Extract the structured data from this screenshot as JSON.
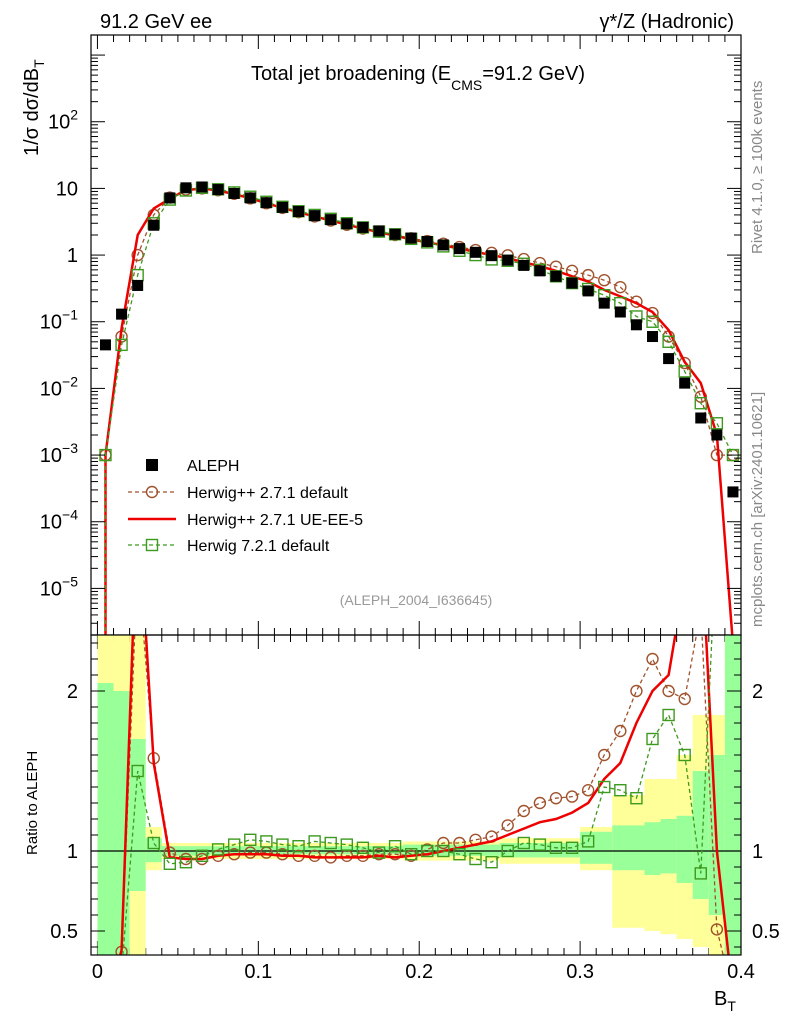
{
  "header": {
    "left": "91.2 GeV ee",
    "right": "γ*/Z (Hadronic)"
  },
  "side_labels": {
    "rivet": "Rivet 4.1.0, ≥ 100k events",
    "mcplots": "mcplots.cern.ch [arXiv:2401.10621]"
  },
  "colors": {
    "data": "#000000",
    "herwigpp_default": "#a0522d",
    "herwigpp_ueee5": "#ee0000",
    "herwig7": "#3c9a1e",
    "band_yellow": "#ffff99",
    "band_green": "#99ff99"
  },
  "chart_data": {
    "type": "line",
    "title": "Total jet broadening (E_CMS=91.2 GeV)",
    "title_parts": {
      "main": "Total jet broadening (E",
      "sub": "CMS",
      "tail": "=91.2 GeV)"
    },
    "analysis_tag": "(ALEPH_2004_I636645)",
    "ylabel": {
      "main": "1/σ  dσ/dB",
      "sub": "T"
    },
    "xlabel": {
      "main": "B",
      "sub": "T"
    },
    "ratio_ylabel": "Ratio to ALEPH",
    "xlim": [
      -0.004,
      0.4
    ],
    "ylim_log": [
      2e-06,
      2000
    ],
    "ratio_ylim": [
      0.35,
      2.35
    ],
    "x_ticks": [
      "0",
      "0.1",
      "0.2",
      "0.3",
      "0.4"
    ],
    "y_ticks": [
      {
        "base": "10",
        "exp": "−5",
        "v": 1e-05
      },
      {
        "base": "10",
        "exp": "−4",
        "v": 0.0001
      },
      {
        "base": "10",
        "exp": "−3",
        "v": 0.001
      },
      {
        "base": "10",
        "exp": "−2",
        "v": 0.01
      },
      {
        "base": "10",
        "exp": "−1",
        "v": 0.1
      },
      {
        "base": "1",
        "exp": "",
        "v": 1
      },
      {
        "base": "10",
        "exp": "",
        "v": 10
      },
      {
        "base": "10",
        "exp": "2",
        "v": 100
      }
    ],
    "ratio_ticks": [
      "0.5",
      "1",
      "2"
    ],
    "legend": [
      "ALEPH",
      "Herwig++ 2.7.1 default",
      "Herwig++ 2.7.1 UE-EE-5",
      "Herwig 7.2.1 default"
    ],
    "x": [
      0.005,
      0.015,
      0.025,
      0.035,
      0.045,
      0.055,
      0.065,
      0.075,
      0.085,
      0.095,
      0.105,
      0.115,
      0.125,
      0.135,
      0.145,
      0.155,
      0.165,
      0.175,
      0.185,
      0.195,
      0.205,
      0.215,
      0.225,
      0.235,
      0.245,
      0.255,
      0.265,
      0.275,
      0.285,
      0.295,
      0.305,
      0.315,
      0.325,
      0.335,
      0.345,
      0.355,
      0.365,
      0.375,
      0.385,
      0.395
    ],
    "series": [
      {
        "name": "ALEPH",
        "values": [
          0.045,
          0.13,
          0.35,
          2.8,
          7.2,
          10.2,
          10.5,
          9.6,
          8.4,
          7.2,
          6.1,
          5.2,
          4.5,
          3.9,
          3.4,
          2.95,
          2.6,
          2.3,
          2.05,
          1.8,
          1.6,
          1.42,
          1.25,
          1.1,
          0.98,
          0.84,
          0.7,
          0.58,
          0.48,
          0.38,
          0.29,
          0.19,
          0.14,
          0.09,
          0.06,
          0.028,
          0.012,
          0.0036,
          0.002,
          0.00028
        ]
      },
      {
        "name": "Herwig++ 2.7.1 default",
        "values": [
          0.001,
          0.06,
          1.0,
          4.0,
          7.3,
          9.6,
          10.0,
          9.4,
          8.3,
          7.1,
          6.0,
          5.1,
          4.4,
          3.8,
          3.3,
          2.85,
          2.5,
          2.25,
          2.0,
          1.78,
          1.62,
          1.48,
          1.32,
          1.19,
          1.08,
          0.99,
          0.87,
          0.76,
          0.67,
          0.58,
          0.5,
          0.42,
          0.33,
          0.2,
          0.135,
          0.06,
          0.024,
          0.0075,
          0.001,
          0.001
        ]
      },
      {
        "name": "Herwig++ 2.7.1 UE-EE-5",
        "values": [
          0.001,
          0.08,
          2.0,
          5.0,
          7.0,
          9.4,
          10.0,
          9.3,
          8.2,
          7.1,
          6.0,
          5.1,
          4.4,
          3.8,
          3.3,
          2.85,
          2.5,
          2.2,
          1.95,
          1.72,
          1.55,
          1.4,
          1.25,
          1.12,
          1.0,
          0.9,
          0.78,
          0.68,
          0.58,
          0.48,
          0.4,
          0.3,
          0.24,
          0.19,
          0.14,
          0.075,
          0.025,
          0.012,
          0.002,
          0.0
        ]
      },
      {
        "name": "Herwig 7.2.1 default",
        "values": [
          0.001,
          0.045,
          0.5,
          3.0,
          6.8,
          9.3,
          10.2,
          9.7,
          8.7,
          7.5,
          6.3,
          5.3,
          4.55,
          4.0,
          3.5,
          3.0,
          2.6,
          2.25,
          2.05,
          1.75,
          1.55,
          1.35,
          1.16,
          1.0,
          0.86,
          0.82,
          0.74,
          0.6,
          0.48,
          0.38,
          0.31,
          0.25,
          0.19,
          0.12,
          0.1,
          0.05,
          0.018,
          0.006,
          0.003,
          0.001
        ]
      }
    ],
    "ratios": [
      {
        "name": "Herwig++ 2.7.1 default",
        "values": [
          0.02,
          0.37,
          2.8,
          1.58,
          0.99,
          0.95,
          0.95,
          0.97,
          0.98,
          0.99,
          0.99,
          0.98,
          0.97,
          0.97,
          0.96,
          0.97,
          0.97,
          0.98,
          0.98,
          0.97,
          1.01,
          1.05,
          1.05,
          1.07,
          1.09,
          1.16,
          1.25,
          1.3,
          1.33,
          1.34,
          1.38,
          1.6,
          1.75,
          2.0,
          2.2,
          2.0,
          1.95,
          2.5,
          0.51,
          0.1
        ]
      },
      {
        "name": "Herwig++ 2.7.1 UE-EE-5",
        "values": [
          0.02,
          0.38,
          3.5,
          1.55,
          0.96,
          0.95,
          0.95,
          0.97,
          0.98,
          0.98,
          0.98,
          0.97,
          0.97,
          0.96,
          0.96,
          0.96,
          0.96,
          0.97,
          0.96,
          0.97,
          0.98,
          1.0,
          1.02,
          1.04,
          1.06,
          1.1,
          1.14,
          1.18,
          1.2,
          1.24,
          1.3,
          1.45,
          1.55,
          1.8,
          2.0,
          2.1,
          2.7,
          3.0,
          1.0,
          0.1
        ]
      },
      {
        "name": "Herwig 7.2.1 default",
        "values": [
          0.02,
          0.25,
          1.5,
          1.05,
          0.92,
          0.93,
          0.97,
          1.01,
          1.04,
          1.07,
          1.06,
          1.04,
          1.03,
          1.06,
          1.05,
          1.04,
          1.02,
          0.99,
          1.03,
          0.98,
          1.0,
          1.0,
          0.98,
          0.95,
          0.93,
          1.0,
          1.05,
          1.04,
          1.02,
          1.02,
          1.06,
          1.4,
          1.38,
          1.33,
          1.7,
          1.85,
          1.6,
          0.86,
          3.0,
          3.0
        ]
      }
    ],
    "bands": [
      {
        "x0": 0.0,
        "x1": 0.01,
        "y_lo": 0.35,
        "y_hi": 2.35,
        "g_lo": 0.35,
        "g_hi": 2.05
      },
      {
        "x0": 0.01,
        "x1": 0.02,
        "y_lo": 0.35,
        "y_hi": 2.35,
        "g_lo": 0.35,
        "g_hi": 2.0
      },
      {
        "x0": 0.02,
        "x1": 0.03,
        "y_lo": 0.35,
        "y_hi": 2.35,
        "g_lo": 0.75,
        "g_hi": 1.7
      },
      {
        "x0": 0.03,
        "x1": 0.04,
        "y_lo": 0.88,
        "y_hi": 1.15,
        "g_lo": 0.93,
        "g_hi": 1.08
      },
      {
        "x0": 0.04,
        "x1": 0.07,
        "y_lo": 0.95,
        "y_hi": 1.05,
        "g_lo": 0.97,
        "g_hi": 1.03
      },
      {
        "x0": 0.07,
        "x1": 0.19,
        "y_lo": 0.95,
        "y_hi": 1.05,
        "g_lo": 0.98,
        "g_hi": 1.03
      },
      {
        "x0": 0.19,
        "x1": 0.25,
        "y_lo": 0.94,
        "y_hi": 1.06,
        "g_lo": 0.97,
        "g_hi": 1.04
      },
      {
        "x0": 0.25,
        "x1": 0.3,
        "y_lo": 0.92,
        "y_hi": 1.08,
        "g_lo": 0.96,
        "g_hi": 1.05
      },
      {
        "x0": 0.3,
        "x1": 0.32,
        "y_lo": 0.88,
        "y_hi": 1.15,
        "g_lo": 0.92,
        "g_hi": 1.12
      },
      {
        "x0": 0.32,
        "x1": 0.34,
        "y_lo": 0.52,
        "y_hi": 1.35,
        "g_lo": 0.88,
        "g_hi": 1.16
      },
      {
        "x0": 0.34,
        "x1": 0.35,
        "y_lo": 0.5,
        "y_hi": 1.45,
        "g_lo": 0.85,
        "g_hi": 1.18
      },
      {
        "x0": 0.35,
        "x1": 0.36,
        "y_lo": 0.48,
        "y_hi": 1.45,
        "g_lo": 0.86,
        "g_hi": 1.2
      },
      {
        "x0": 0.36,
        "x1": 0.37,
        "y_lo": 0.45,
        "y_hi": 1.6,
        "g_lo": 0.8,
        "g_hi": 1.22
      },
      {
        "x0": 0.37,
        "x1": 0.38,
        "y_lo": 0.4,
        "y_hi": 1.85,
        "g_lo": 0.7,
        "g_hi": 1.5
      },
      {
        "x0": 0.38,
        "x1": 0.39,
        "y_lo": 0.35,
        "y_hi": 1.85,
        "g_lo": 0.6,
        "g_hi": 1.6
      },
      {
        "x0": 0.39,
        "x1": 0.4,
        "y_lo": 0.35,
        "y_hi": 2.35,
        "g_lo": 0.35,
        "g_hi": 2.35
      }
    ]
  }
}
